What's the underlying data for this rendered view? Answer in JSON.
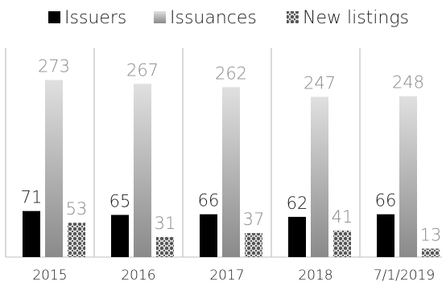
{
  "chart_data": {
    "type": "bar",
    "categories": [
      "2015",
      "2016",
      "2017",
      "2018",
      "7/1/2019"
    ],
    "series": [
      {
        "name": "Issuers",
        "values": [
          71,
          65,
          66,
          62,
          66
        ],
        "style": "solid-black"
      },
      {
        "name": "Issuances",
        "values": [
          273,
          267,
          262,
          247,
          248
        ],
        "style": "gradient-grey"
      },
      {
        "name": "New listings",
        "values": [
          53,
          31,
          37,
          41,
          13
        ],
        "style": "checker-pattern"
      }
    ],
    "ylim": [
      0,
      300
    ],
    "grid": false,
    "legend_position": "top",
    "data_labels": true,
    "colors": {
      "issuers": "#000000",
      "issuances_light": "#dcdcdc",
      "issuances_dark": "#8c8c8c",
      "pattern_dark": "#555555",
      "pattern_light": "#e6e6e6",
      "separator": "#b3b3b3",
      "axis": "#bfbfbf",
      "label_dark": "#1a1a1a",
      "label_grey": "#8a8a8a"
    }
  }
}
